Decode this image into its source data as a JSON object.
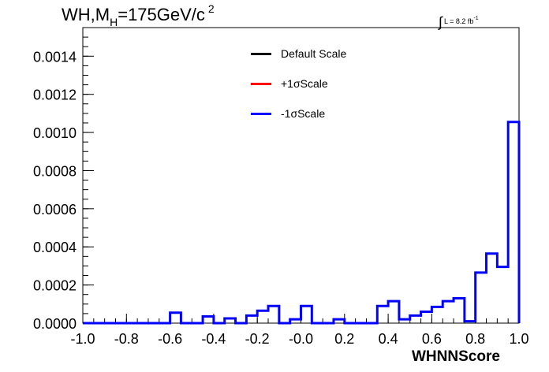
{
  "header": {
    "title_main": "WH,M",
    "title_sub": "H",
    "title_rest": "=175GeV/c",
    "title_sup": "2",
    "lumi_integral": "∫",
    "lumi_text": "L = 8.2 fb",
    "lumi_sup": "-1"
  },
  "legend": {
    "items": [
      {
        "label": "Default Scale",
        "color": "#000000"
      },
      {
        "label": "+1σScale",
        "color": "#ff0000"
      },
      {
        "label": "-1σScale",
        "color": "#0000ff"
      }
    ]
  },
  "chart_data": {
    "type": "histogram",
    "title": "WH,MH=175GeV/c2",
    "xlabel": "WHNNScore",
    "ylabel": "",
    "xlim": [
      -1.0,
      1.0
    ],
    "ylim": [
      0.0,
      0.00155
    ],
    "bin_width": 0.05,
    "x_ticks": [
      "-1.0",
      "-0.8",
      "-0.6",
      "-0.4",
      "-0.2",
      "-0.0",
      "0.2",
      "0.4",
      "0.6",
      "0.8",
      "1.0"
    ],
    "y_ticks": [
      "0.0000",
      "0.0002",
      "0.0004",
      "0.0006",
      "0.0008",
      "0.0010",
      "0.0012",
      "0.0014"
    ],
    "bin_edges_start": -1.0,
    "series": [
      {
        "name": "-1σScale",
        "color": "#0000ff",
        "values": [
          0,
          0,
          0,
          0,
          0,
          0,
          0,
          0,
          5.5e-05,
          0,
          0,
          3.5e-05,
          0,
          2.5e-05,
          0,
          4e-05,
          6.5e-05,
          9e-05,
          0,
          2e-05,
          9e-05,
          0,
          0,
          2e-05,
          0,
          0,
          0,
          9e-05,
          0.000115,
          2e-05,
          4e-05,
          6e-05,
          8.5e-05,
          0.000115,
          0.00013,
          1e-05,
          0.000265,
          0.000365,
          0.000295,
          0.001055
        ]
      }
    ]
  }
}
